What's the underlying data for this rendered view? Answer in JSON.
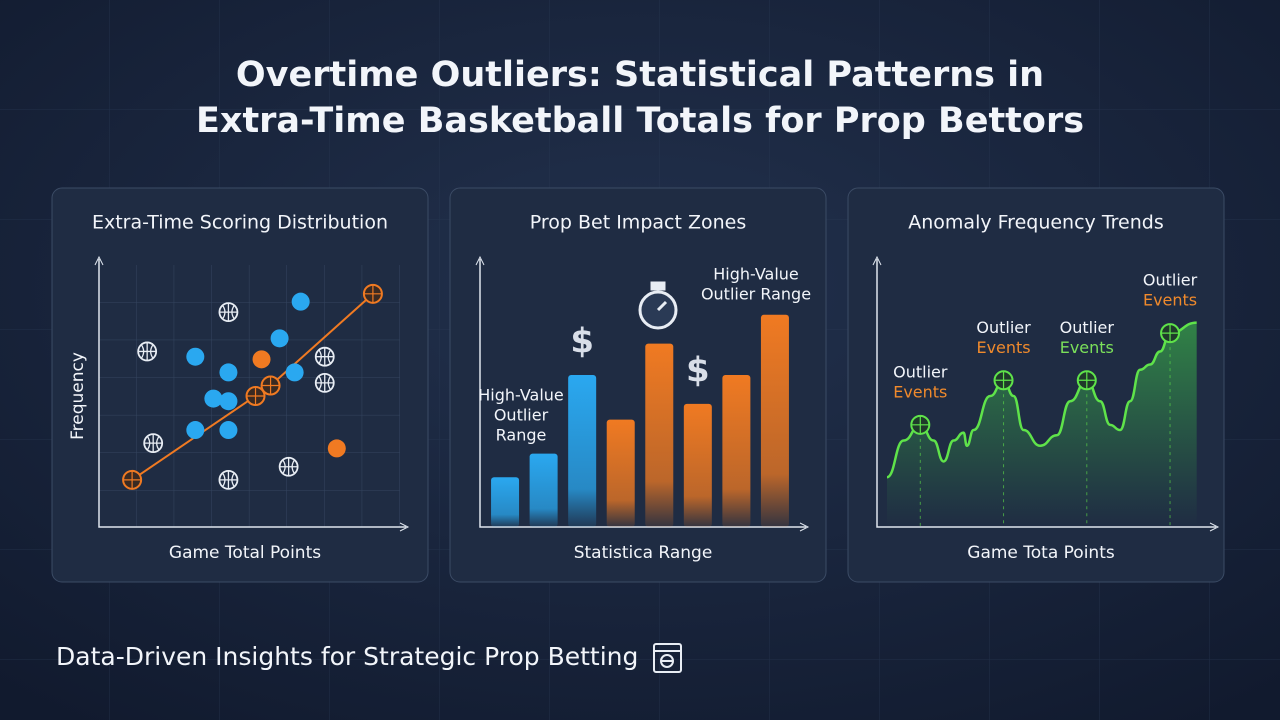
{
  "title_lines": [
    "Overtime Outliers: Statistical Patterns in",
    "Extra-Time Basketball Totals for Prop Bettors"
  ],
  "footer": "Data-Driven Insights for Strategic Prop Betting",
  "chart_data": [
    {
      "type": "scatter",
      "title": "Extra-Time Scoring Distribution",
      "x_label": "Game Total Points",
      "y_label": "Frequency",
      "xlim": [
        0,
        100
      ],
      "ylim": [
        0,
        100
      ],
      "series": [
        {
          "color": "#f07a22",
          "marker": "dot",
          "line": true,
          "x": [
            11,
            52,
            57,
            91
          ],
          "values": [
            18,
            50,
            54,
            89
          ]
        },
        {
          "color": "#f07a22",
          "marker": "dot",
          "x": [
            54,
            79
          ],
          "values": [
            64,
            30
          ]
        },
        {
          "color": "#2aa8f0",
          "marker": "dot",
          "x": [
            32,
            43,
            38,
            43,
            32,
            43,
            65,
            60,
            67
          ],
          "values": [
            65,
            59,
            49,
            48,
            37,
            37,
            59,
            72,
            86
          ]
        },
        {
          "color": "#e8edf4",
          "marker": "ball",
          "x": [
            43,
            16,
            75,
            75,
            18,
            63,
            43
          ],
          "values": [
            82,
            67,
            65,
            55,
            32,
            23,
            18
          ]
        }
      ]
    },
    {
      "type": "bar",
      "title": "Prop Bet Impact Zones",
      "x_label": "Statistica Range",
      "ylim": [
        0,
        100
      ],
      "values": [
        19,
        28,
        58,
        41,
        70,
        47,
        58,
        81
      ],
      "colors": [
        "#2aa8f0",
        "#2aa8f0",
        "#2aa8f0",
        "#f07a22",
        "#f07a22",
        "#f07a22",
        "#f07a22",
        "#f07a22"
      ],
      "annotations": [
        [
          "High-Value",
          "Outlier",
          "Range"
        ],
        [
          "High-Value",
          "Outlier Range"
        ]
      ],
      "icons": [
        "$",
        "$"
      ]
    },
    {
      "type": "line",
      "title": "Anomaly Frequency Trends",
      "x_label": "Game Tota Points",
      "xlim": [
        0,
        100
      ],
      "ylim": [
        0,
        100
      ],
      "color": "#5fe34a",
      "x": [
        3,
        8,
        13,
        17,
        20,
        23,
        26,
        27,
        29,
        34,
        38,
        41,
        44,
        49,
        54,
        58,
        63,
        67,
        70,
        73,
        76,
        79,
        82,
        85,
        88,
        96
      ],
      "values": [
        19,
        33,
        39,
        33,
        25,
        33,
        36,
        31,
        37,
        50,
        56,
        50,
        37,
        31,
        35,
        48,
        56,
        48,
        39,
        37,
        48,
        60,
        62,
        67,
        74,
        78
      ],
      "markers": {
        "x": [
          13,
          38,
          63,
          88
        ],
        "values": [
          39,
          56,
          56,
          74
        ]
      },
      "annotations": [
        {
          "lines": [
            "Outlier",
            "Events"
          ],
          "color": "#f08a2c"
        },
        {
          "lines": [
            "Outlier",
            "Events"
          ],
          "color": "#f08a2c"
        },
        {
          "lines": [
            "Outlier",
            "Events"
          ],
          "color": "#7be05a"
        },
        {
          "lines": [
            "Outlier",
            "Events"
          ],
          "color": "#f08a2c"
        }
      ]
    }
  ]
}
